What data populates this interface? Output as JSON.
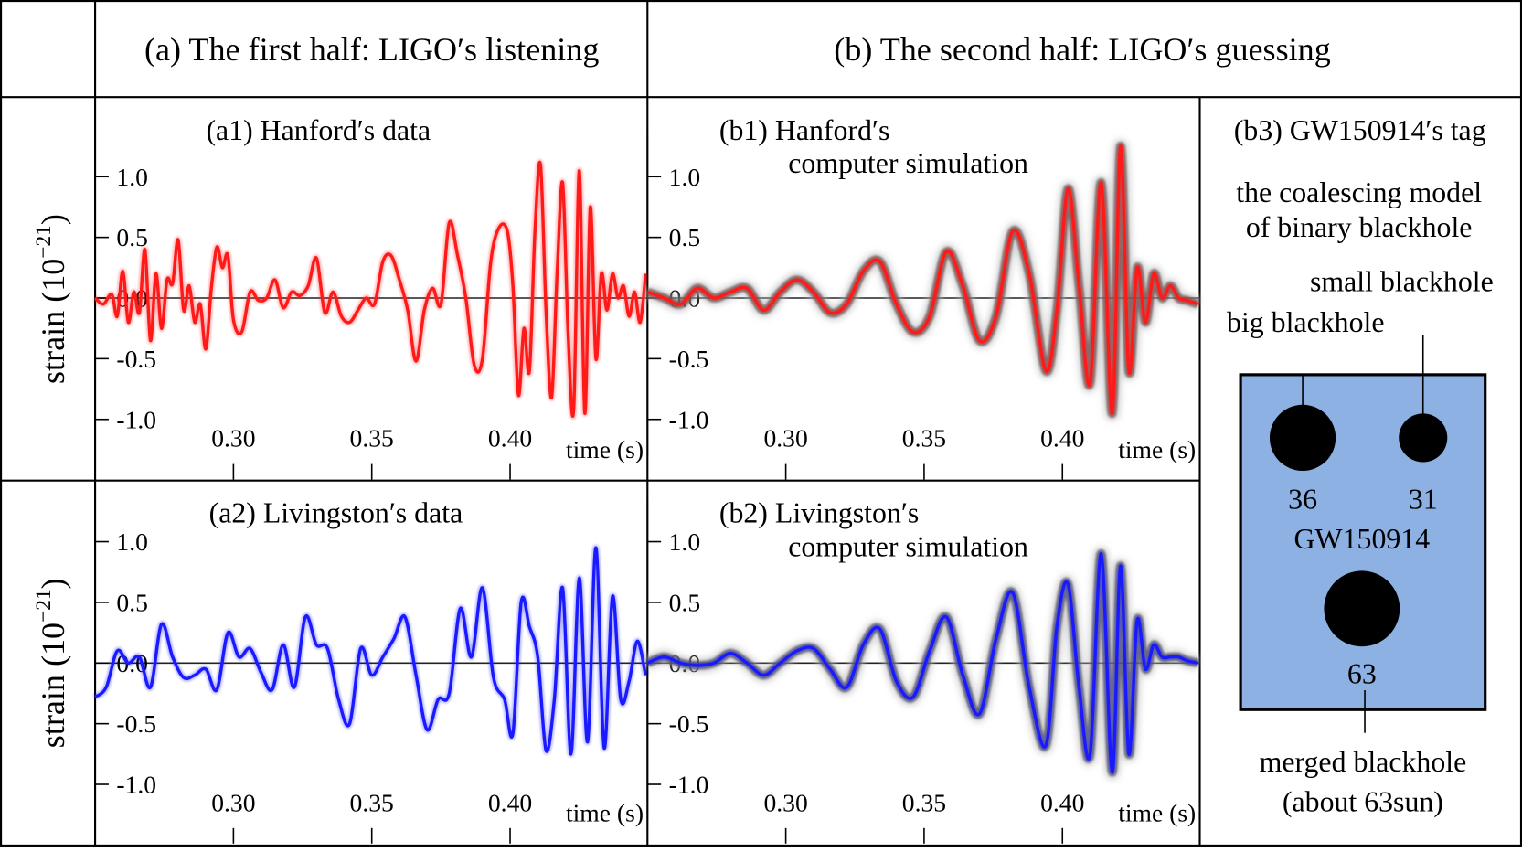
{
  "headers": {
    "a": "(a) The first half: LIGO′s listening",
    "b": "(b) The second half: LIGO′s guessing"
  },
  "axes": {
    "ylabel_main": "strain (10",
    "ylabel_exp": "−21",
    "ylabel_close": ")",
    "yticks": [
      "1.0",
      "0.5",
      "0.0",
      "-0.5",
      "-1.0"
    ],
    "xticks": [
      "0.30",
      "0.35",
      "0.40"
    ],
    "xlabel": "time (s)"
  },
  "panels": {
    "a1": {
      "title": "(a1) Hanford′s data"
    },
    "a2": {
      "title": "(a2) Livingston′s data"
    },
    "b1": {
      "title_line1": "(b1) Hanford′s",
      "title_line2": "computer simulation"
    },
    "b2": {
      "title_line1": "(b2) Livingston′s",
      "title_line2": "computer simulation"
    },
    "b3": {
      "title": "(b3) GW150914′s tag",
      "model_line1": "the coalescing model",
      "model_line2": "of binary blackhole",
      "small_label": "small blackhole",
      "big_label": "big blackhole",
      "big_mass": "36",
      "small_mass": "31",
      "event_name": "GW150914",
      "merged_mass": "63",
      "merged_line1": "merged blackhole",
      "merged_line2": "(about 63sun)",
      "box_color": "#8eb1e4"
    }
  },
  "colors": {
    "hanford": "#ff1a1a",
    "livingston": "#1a1aff",
    "simulation_band": "#555555"
  },
  "chart_data": [
    {
      "type": "line",
      "title": "(a1) Hanford's data",
      "xlabel": "time (s)",
      "ylabel": "strain (10^-21)",
      "xlim": [
        0.25,
        0.45
      ],
      "ylim": [
        -1.2,
        1.3
      ],
      "x": [
        0.25,
        0.253,
        0.256,
        0.258,
        0.26,
        0.262,
        0.264,
        0.266,
        0.268,
        0.27,
        0.272,
        0.274,
        0.276,
        0.278,
        0.28,
        0.282,
        0.284,
        0.286,
        0.288,
        0.29,
        0.292,
        0.294,
        0.296,
        0.298,
        0.3,
        0.303,
        0.306,
        0.309,
        0.312,
        0.315,
        0.318,
        0.321,
        0.324,
        0.327,
        0.33,
        0.333,
        0.336,
        0.339,
        0.342,
        0.345,
        0.348,
        0.351,
        0.354,
        0.357,
        0.36,
        0.363,
        0.366,
        0.369,
        0.372,
        0.375,
        0.378,
        0.381,
        0.384,
        0.387,
        0.39,
        0.393,
        0.396,
        0.399,
        0.401,
        0.403,
        0.405,
        0.407,
        0.409,
        0.411,
        0.413,
        0.415,
        0.417,
        0.419,
        0.421,
        0.423,
        0.425,
        0.427,
        0.429,
        0.431,
        0.433,
        0.435,
        0.437,
        0.439,
        0.441,
        0.443,
        0.445,
        0.447,
        0.449
      ],
      "series": [
        {
          "name": "Hanford",
          "values": [
            0.0,
            -0.05,
            0.03,
            -0.15,
            0.22,
            -0.2,
            0.05,
            -0.12,
            0.4,
            -0.35,
            0.2,
            -0.25,
            0.15,
            0.12,
            0.48,
            -0.1,
            0.1,
            -0.2,
            -0.05,
            -0.42,
            0.08,
            0.42,
            0.25,
            0.35,
            -0.18,
            -0.28,
            0.05,
            -0.02,
            0.0,
            0.15,
            -0.08,
            0.05,
            0.02,
            0.1,
            0.33,
            -0.12,
            0.05,
            -0.15,
            -0.2,
            -0.1,
            0.0,
            -0.05,
            0.3,
            0.35,
            0.15,
            -0.1,
            -0.52,
            -0.1,
            0.08,
            -0.05,
            0.62,
            0.35,
            0.0,
            -0.55,
            -0.5,
            0.3,
            0.58,
            0.55,
            0.1,
            -0.8,
            -0.25,
            -0.6,
            0.55,
            1.1,
            -0.1,
            -0.82,
            0.2,
            0.95,
            -0.3,
            -0.92,
            1.05,
            -0.95,
            0.75,
            -0.5,
            0.2,
            -0.1,
            0.2,
            0.0,
            0.1,
            -0.15,
            0.05,
            -0.2,
            0.2
          ]
        }
      ]
    },
    {
      "type": "line",
      "title": "(a2) Livingston's data",
      "xlabel": "time (s)",
      "ylabel": "strain (10^-21)",
      "xlim": [
        0.25,
        0.45
      ],
      "ylim": [
        -1.2,
        1.3
      ],
      "x": [
        0.25,
        0.254,
        0.258,
        0.262,
        0.266,
        0.27,
        0.274,
        0.278,
        0.282,
        0.286,
        0.29,
        0.294,
        0.298,
        0.302,
        0.306,
        0.31,
        0.314,
        0.318,
        0.322,
        0.326,
        0.33,
        0.334,
        0.338,
        0.342,
        0.346,
        0.35,
        0.354,
        0.358,
        0.362,
        0.366,
        0.37,
        0.374,
        0.378,
        0.382,
        0.386,
        0.39,
        0.394,
        0.398,
        0.401,
        0.404,
        0.407,
        0.41,
        0.413,
        0.416,
        0.419,
        0.422,
        0.425,
        0.428,
        0.431,
        0.434,
        0.437,
        0.44,
        0.443,
        0.446,
        0.449
      ],
      "series": [
        {
          "name": "Livingston",
          "values": [
            -0.28,
            -0.2,
            0.1,
            0.0,
            0.05,
            -0.2,
            0.32,
            0.05,
            -0.12,
            -0.1,
            -0.05,
            -0.22,
            0.25,
            0.05,
            0.12,
            -0.08,
            -0.22,
            0.15,
            -0.2,
            0.38,
            0.15,
            0.12,
            -0.3,
            -0.5,
            0.12,
            -0.1,
            0.05,
            0.2,
            0.38,
            -0.1,
            -0.55,
            -0.3,
            -0.25,
            0.45,
            0.05,
            0.62,
            -0.12,
            -0.3,
            -0.58,
            0.5,
            0.3,
            0.05,
            -0.72,
            -0.3,
            0.62,
            -0.75,
            0.7,
            -0.65,
            0.95,
            -0.7,
            0.55,
            -0.3,
            -0.15,
            0.18,
            -0.1
          ]
        }
      ]
    },
    {
      "type": "line",
      "title": "(b1) Hanford's computer simulation",
      "xlabel": "time (s)",
      "ylabel": "strain (10^-21)",
      "xlim": [
        0.25,
        0.45
      ],
      "ylim": [
        -1.2,
        1.3
      ],
      "x": [
        0.25,
        0.256,
        0.262,
        0.268,
        0.274,
        0.28,
        0.286,
        0.292,
        0.298,
        0.304,
        0.31,
        0.316,
        0.322,
        0.328,
        0.334,
        0.34,
        0.346,
        0.352,
        0.358,
        0.364,
        0.37,
        0.376,
        0.382,
        0.388,
        0.394,
        0.398,
        0.402,
        0.406,
        0.41,
        0.414,
        0.418,
        0.421,
        0.424,
        0.427,
        0.43,
        0.433,
        0.436,
        0.439,
        0.442,
        0.445,
        0.449
      ],
      "series": [
        {
          "name": "Hanford simulation",
          "values": [
            0.05,
            0.0,
            -0.05,
            0.08,
            0.0,
            0.05,
            0.08,
            -0.1,
            0.05,
            0.15,
            0.05,
            -0.12,
            -0.05,
            0.22,
            0.3,
            -0.05,
            -0.28,
            -0.15,
            0.38,
            0.1,
            -0.35,
            -0.15,
            0.55,
            0.2,
            -0.6,
            -0.1,
            0.9,
            0.1,
            -0.7,
            0.95,
            -0.95,
            1.25,
            -0.6,
            0.25,
            -0.2,
            0.2,
            0.0,
            0.1,
            0.0,
            -0.02,
            -0.05
          ]
        }
      ]
    },
    {
      "type": "line",
      "title": "(b2) Livingston's computer simulation",
      "xlabel": "time (s)",
      "ylabel": "strain (10^-21)",
      "xlim": [
        0.25,
        0.45
      ],
      "ylim": [
        -1.2,
        1.3
      ],
      "x": [
        0.25,
        0.256,
        0.262,
        0.268,
        0.274,
        0.28,
        0.286,
        0.292,
        0.298,
        0.304,
        0.31,
        0.316,
        0.322,
        0.328,
        0.334,
        0.34,
        0.346,
        0.352,
        0.358,
        0.364,
        0.37,
        0.376,
        0.382,
        0.388,
        0.394,
        0.398,
        0.402,
        0.406,
        0.41,
        0.414,
        0.418,
        0.421,
        0.424,
        0.427,
        0.43,
        0.433,
        0.436,
        0.439,
        0.442,
        0.445,
        0.449
      ],
      "series": [
        {
          "name": "Livingston simulation",
          "values": [
            0.0,
            0.05,
            0.0,
            -0.02,
            0.0,
            0.08,
            0.0,
            -0.1,
            0.0,
            0.1,
            0.12,
            -0.05,
            -0.2,
            0.15,
            0.28,
            -0.15,
            -0.28,
            0.1,
            0.38,
            -0.1,
            -0.42,
            0.2,
            0.58,
            -0.2,
            -0.68,
            0.3,
            0.65,
            -0.2,
            -0.75,
            0.9,
            -0.9,
            0.8,
            -0.75,
            0.35,
            -0.05,
            0.15,
            0.05,
            0.05,
            0.05,
            0.02,
            0.0
          ]
        }
      ]
    }
  ]
}
